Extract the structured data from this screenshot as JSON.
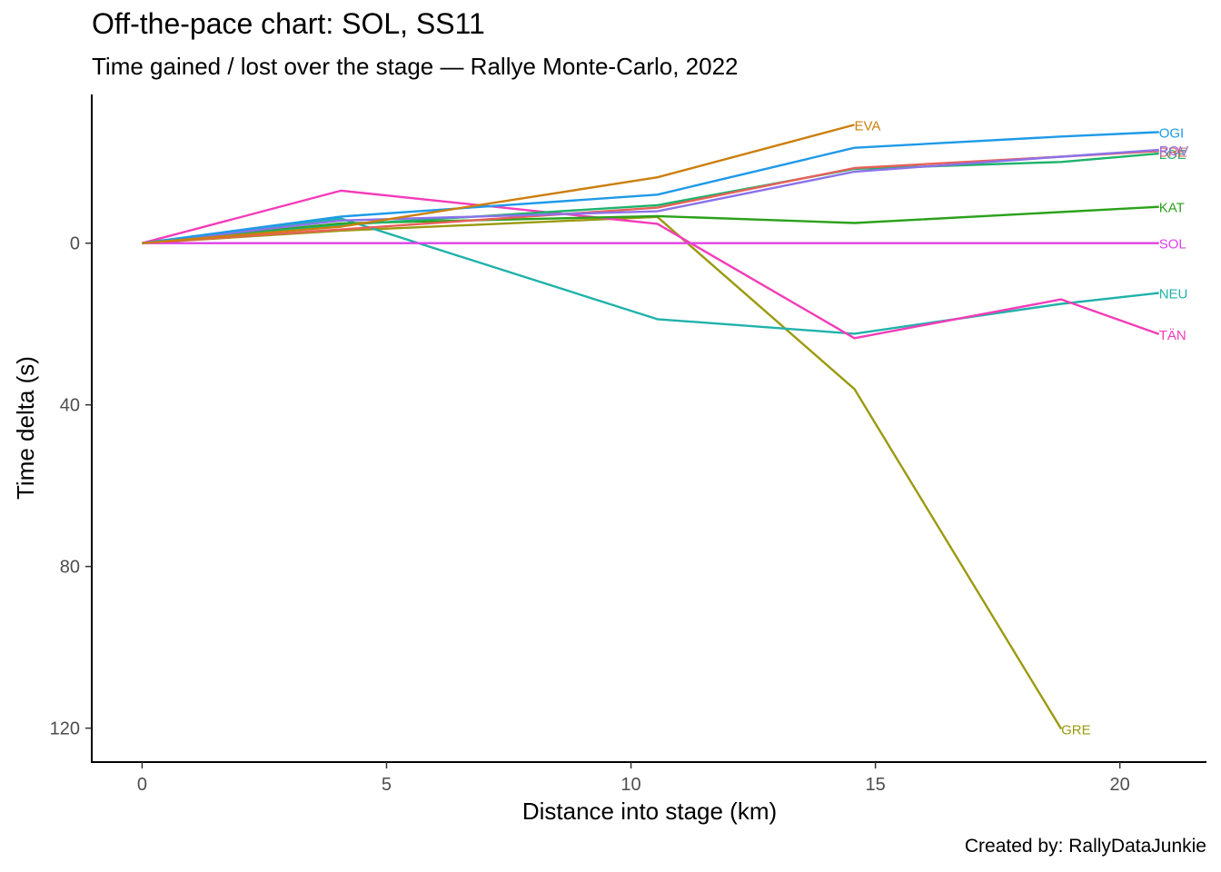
{
  "chart_data": {
    "type": "line",
    "title": "Off-the-pace chart: SOL, SS11",
    "subtitle": "Time gained / lost over the stage — Rallye Monte-Carlo, 2022",
    "caption": "Created by: RallyDataJunkie",
    "xlabel": "Distance into stage (km)",
    "ylabel": "Time delta (s)",
    "y_reversed": true,
    "xlim": [
      -1.03,
      21.79
    ],
    "ylim": [
      -36.8,
      128.4
    ],
    "x_ticks": [
      0,
      5,
      10,
      15,
      20
    ],
    "y_ticks": [
      0,
      40,
      80,
      120
    ],
    "grid": false,
    "legend": "direct labels at line ends",
    "series": [
      {
        "name": "GRE",
        "color": "#9A9A0F",
        "points": [
          [
            0,
            0
          ],
          [
            4.07,
            -3.1
          ],
          [
            10.54,
            -6.5
          ],
          [
            14.57,
            36.1
          ],
          [
            18.8,
            120.2
          ]
        ]
      },
      {
        "name": "NEU",
        "color": "#20B2AA",
        "points": [
          [
            0,
            0
          ],
          [
            4.07,
            -6.1
          ],
          [
            10.54,
            18.8
          ],
          [
            14.57,
            22.4
          ],
          [
            18.8,
            15.0
          ],
          [
            20.8,
            12.3
          ]
        ]
      },
      {
        "name": "TÄN",
        "color": "#F33CB8",
        "points": [
          [
            0,
            0
          ],
          [
            4.07,
            -13.0
          ],
          [
            10.54,
            -4.8
          ],
          [
            14.57,
            23.5
          ],
          [
            18.8,
            13.9
          ],
          [
            20.8,
            22.5
          ]
        ]
      },
      {
        "name": "SOL",
        "color": "#E040E8",
        "points": [
          [
            0,
            0
          ],
          [
            20.8,
            0
          ]
        ]
      },
      {
        "name": "KAT",
        "color": "#2BA11B",
        "points": [
          [
            0,
            0
          ],
          [
            4.07,
            -4.9
          ],
          [
            10.54,
            -6.7
          ],
          [
            14.57,
            -5.0
          ],
          [
            20.8,
            -9.0
          ]
        ]
      },
      {
        "name": "LOE",
        "color": "#1CB36A",
        "points": [
          [
            0,
            0
          ],
          [
            4.07,
            -4.5
          ],
          [
            10.54,
            -9.4
          ],
          [
            14.57,
            -18.4
          ],
          [
            18.8,
            -20.1
          ],
          [
            20.8,
            -22.2
          ]
        ]
      },
      {
        "name": "BRE",
        "color": "#E8605A",
        "points": [
          [
            0,
            0
          ],
          [
            4.07,
            -3.4
          ],
          [
            10.54,
            -8.8
          ],
          [
            14.57,
            -18.6
          ],
          [
            18.8,
            -21.4
          ],
          [
            20.8,
            -22.8
          ]
        ]
      },
      {
        "name": "ROV",
        "color": "#8B72EA",
        "points": [
          [
            0,
            0
          ],
          [
            4.07,
            -5.6
          ],
          [
            10.54,
            -7.9
          ],
          [
            14.57,
            -17.7
          ],
          [
            18.8,
            -21.4
          ],
          [
            20.8,
            -23.1
          ]
        ]
      },
      {
        "name": "OGI",
        "color": "#1E9AE8",
        "points": [
          [
            0,
            0
          ],
          [
            4.07,
            -6.6
          ],
          [
            10.54,
            -12.0
          ],
          [
            14.57,
            -23.6
          ],
          [
            18.8,
            -26.4
          ],
          [
            20.8,
            -27.5
          ]
        ]
      },
      {
        "name": "EVA",
        "color": "#CC7F0E",
        "points": [
          [
            0,
            0
          ],
          [
            4.07,
            -4.1
          ],
          [
            10.54,
            -16.3
          ],
          [
            14.57,
            -29.3
          ]
        ]
      }
    ]
  }
}
